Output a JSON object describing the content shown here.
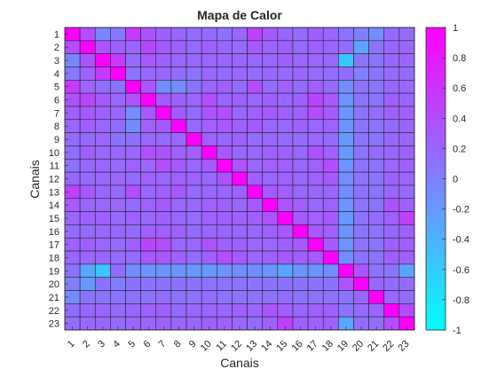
{
  "chart_data": {
    "type": "heatmap",
    "title": "Mapa de Calor",
    "xlabel": "Canais",
    "ylabel": "Canais",
    "x_labels": [
      "1",
      "2",
      "3",
      "4",
      "5",
      "6",
      "7",
      "8",
      "9",
      "10",
      "11",
      "12",
      "13",
      "14",
      "15",
      "16",
      "17",
      "18",
      "19",
      "20",
      "21",
      "22",
      "23"
    ],
    "y_labels": [
      "1",
      "2",
      "3",
      "4",
      "5",
      "6",
      "7",
      "8",
      "9",
      "10",
      "11",
      "12",
      "13",
      "14",
      "15",
      "16",
      "17",
      "18",
      "19",
      "20",
      "21",
      "22",
      "23"
    ],
    "colorbar": {
      "min": -1,
      "max": 1,
      "ticks": [
        -1,
        -0.8,
        -0.6,
        -0.4,
        -0.2,
        0,
        0.2,
        0.4,
        0.6,
        0.8,
        1
      ],
      "tick_labels": [
        "-1",
        "-0.8",
        "-0.6",
        "-0.4",
        "-0.2",
        "0",
        "0.2",
        "0.4",
        "0.6",
        "0.8",
        "1"
      ],
      "colormap": "cool",
      "color_low": "#00ffff",
      "color_high": "#ff00ff"
    },
    "values": [
      [
        1.0,
        0.4,
        -0.05,
        0.05,
        0.55,
        0.35,
        0.25,
        0.2,
        0.15,
        0.15,
        0.1,
        0.2,
        0.5,
        0.3,
        0.2,
        0.15,
        0.25,
        0.2,
        0.1,
        0.0,
        -0.1,
        0.15,
        0.15
      ],
      [
        0.4,
        1.0,
        0.35,
        0.25,
        0.2,
        0.45,
        0.3,
        0.25,
        0.15,
        0.25,
        0.2,
        0.15,
        0.3,
        0.2,
        0.25,
        0.15,
        0.25,
        0.2,
        0.15,
        -0.3,
        0.1,
        0.2,
        0.2
      ],
      [
        -0.05,
        0.35,
        1.0,
        0.55,
        0.15,
        0.3,
        0.25,
        0.2,
        0.2,
        0.2,
        0.2,
        0.2,
        0.2,
        0.2,
        0.25,
        0.2,
        0.2,
        0.2,
        -0.55,
        0.1,
        0.1,
        0.2,
        0.2
      ],
      [
        0.05,
        0.25,
        0.55,
        1.0,
        0.1,
        0.2,
        0.2,
        0.15,
        0.1,
        0.2,
        0.15,
        0.2,
        0.15,
        0.2,
        0.15,
        0.2,
        0.15,
        0.15,
        0.15,
        0.0,
        0.1,
        0.15,
        0.15
      ],
      [
        0.55,
        0.2,
        0.15,
        0.1,
        1.0,
        0.35,
        -0.1,
        -0.1,
        0.1,
        0.2,
        0.25,
        0.15,
        0.4,
        0.15,
        0.25,
        0.15,
        0.25,
        0.15,
        -0.1,
        0.1,
        0.1,
        0.2,
        0.2
      ],
      [
        0.35,
        0.45,
        0.3,
        0.2,
        0.35,
        1.0,
        0.3,
        0.25,
        0.2,
        0.4,
        0.2,
        0.25,
        0.2,
        0.25,
        0.2,
        0.25,
        0.45,
        0.3,
        -0.15,
        0.1,
        0.1,
        0.25,
        0.2
      ],
      [
        0.25,
        0.3,
        0.25,
        0.2,
        -0.1,
        0.3,
        1.0,
        0.3,
        0.15,
        0.35,
        0.4,
        0.2,
        0.25,
        0.3,
        0.25,
        0.25,
        0.4,
        0.3,
        -0.15,
        0.1,
        0.15,
        0.25,
        0.25
      ],
      [
        0.2,
        0.25,
        0.2,
        0.15,
        -0.1,
        0.25,
        0.3,
        1.0,
        0.2,
        0.25,
        0.3,
        0.25,
        0.3,
        0.2,
        0.2,
        0.25,
        0.2,
        0.25,
        -0.15,
        0.1,
        0.1,
        0.15,
        0.2
      ],
      [
        0.15,
        0.15,
        0.2,
        0.1,
        0.1,
        0.2,
        0.15,
        0.2,
        1.0,
        0.25,
        0.2,
        0.25,
        0.15,
        0.2,
        0.15,
        0.15,
        0.2,
        0.15,
        -0.2,
        0.1,
        0.1,
        0.2,
        0.2
      ],
      [
        0.15,
        0.25,
        0.2,
        0.2,
        0.2,
        0.4,
        0.35,
        0.25,
        0.25,
        1.0,
        0.3,
        0.2,
        0.2,
        0.25,
        0.25,
        0.2,
        0.35,
        0.25,
        -0.2,
        0.1,
        0.15,
        0.2,
        0.25
      ],
      [
        0.1,
        0.2,
        0.2,
        0.15,
        0.25,
        0.2,
        0.4,
        0.3,
        0.2,
        0.3,
        1.0,
        0.35,
        0.2,
        0.25,
        0.25,
        0.2,
        0.25,
        0.4,
        -0.15,
        0.1,
        0.1,
        0.2,
        0.25
      ],
      [
        0.2,
        0.15,
        0.2,
        0.2,
        0.15,
        0.25,
        0.2,
        0.25,
        0.25,
        0.2,
        0.35,
        1.0,
        0.25,
        0.2,
        0.25,
        0.2,
        0.25,
        0.3,
        -0.1,
        0.1,
        0.1,
        0.25,
        0.2
      ],
      [
        0.5,
        0.3,
        0.2,
        0.15,
        0.4,
        0.2,
        0.25,
        0.3,
        0.15,
        0.2,
        0.2,
        0.25,
        1.0,
        0.3,
        0.25,
        0.2,
        0.2,
        0.2,
        -0.1,
        0.1,
        0.1,
        0.2,
        0.15
      ],
      [
        0.3,
        0.2,
        0.2,
        0.2,
        0.15,
        0.25,
        0.3,
        0.2,
        0.2,
        0.25,
        0.25,
        0.2,
        0.3,
        1.0,
        0.35,
        0.25,
        0.2,
        0.25,
        -0.15,
        0.1,
        0.1,
        0.35,
        0.25
      ],
      [
        0.2,
        0.25,
        0.25,
        0.15,
        0.25,
        0.2,
        0.25,
        0.2,
        0.15,
        0.25,
        0.25,
        0.25,
        0.25,
        0.35,
        1.0,
        0.3,
        0.25,
        0.3,
        -0.2,
        0.1,
        0.15,
        0.25,
        0.5
      ],
      [
        0.15,
        0.15,
        0.2,
        0.2,
        0.15,
        0.25,
        0.25,
        0.25,
        0.15,
        0.2,
        0.2,
        0.2,
        0.2,
        0.25,
        0.3,
        1.0,
        0.3,
        0.25,
        -0.15,
        0.1,
        0.1,
        0.2,
        0.25
      ],
      [
        0.25,
        0.25,
        0.2,
        0.15,
        0.25,
        0.45,
        0.4,
        0.2,
        0.2,
        0.35,
        0.25,
        0.25,
        0.2,
        0.2,
        0.25,
        0.3,
        1.0,
        0.3,
        -0.15,
        0.1,
        0.1,
        0.25,
        0.25
      ],
      [
        0.2,
        0.2,
        0.2,
        0.15,
        0.15,
        0.3,
        0.3,
        0.25,
        0.15,
        0.25,
        0.4,
        0.3,
        0.2,
        0.25,
        0.3,
        0.25,
        0.3,
        1.0,
        -0.1,
        0.1,
        0.1,
        0.25,
        0.25
      ],
      [
        0.1,
        -0.3,
        -0.55,
        0.15,
        -0.1,
        -0.15,
        -0.15,
        -0.15,
        -0.2,
        -0.2,
        -0.15,
        -0.1,
        -0.1,
        -0.15,
        -0.3,
        -0.15,
        -0.15,
        -0.1,
        1.0,
        0.35,
        0.1,
        0.1,
        -0.3
      ],
      [
        0.0,
        -0.2,
        0.1,
        0.0,
        0.1,
        0.1,
        0.1,
        0.1,
        0.1,
        0.1,
        0.1,
        0.1,
        0.1,
        0.1,
        0.1,
        0.1,
        0.1,
        0.1,
        0.35,
        1.0,
        0.2,
        0.15,
        0.15
      ],
      [
        -0.1,
        0.1,
        0.1,
        0.1,
        0.1,
        0.1,
        0.15,
        0.1,
        0.1,
        0.15,
        0.1,
        0.1,
        0.1,
        0.1,
        0.15,
        0.1,
        0.1,
        0.1,
        0.1,
        0.2,
        1.0,
        0.2,
        0.15
      ],
      [
        0.15,
        0.2,
        0.2,
        0.15,
        0.2,
        0.25,
        0.25,
        0.15,
        0.2,
        0.2,
        0.2,
        0.25,
        0.2,
        0.35,
        0.25,
        0.2,
        0.25,
        0.25,
        0.1,
        0.15,
        0.2,
        1.0,
        0.4
      ],
      [
        0.15,
        0.2,
        0.2,
        0.15,
        0.2,
        0.2,
        0.25,
        0.2,
        0.2,
        0.25,
        0.25,
        0.2,
        0.15,
        0.25,
        0.5,
        0.25,
        0.25,
        0.25,
        -0.3,
        0.15,
        0.15,
        0.4,
        1.0
      ]
    ]
  }
}
